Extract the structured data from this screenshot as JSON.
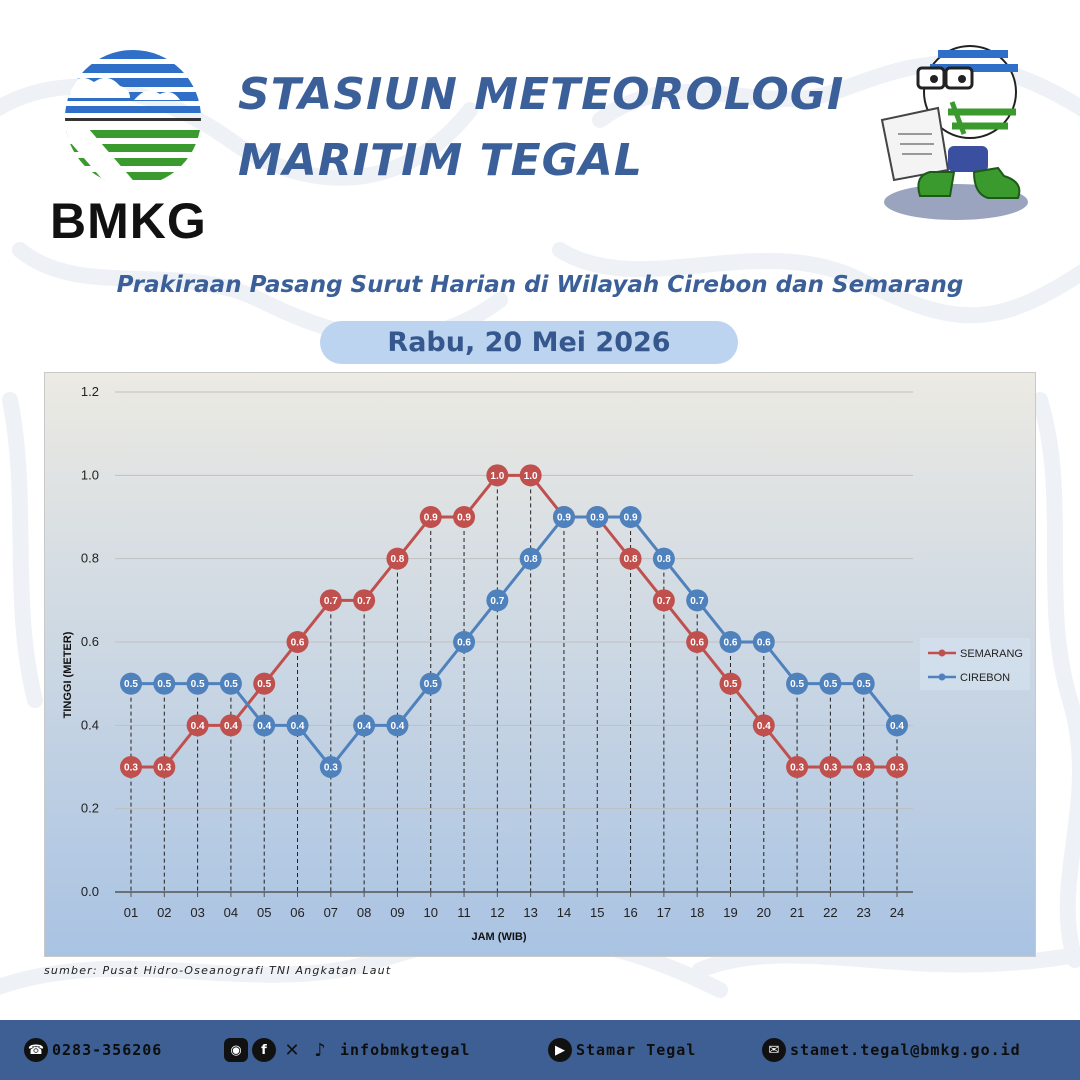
{
  "header": {
    "logo_text": "BMKG",
    "title_line1": "STASIUN METEOROLOGI",
    "title_line2": "MARITIM TEGAL",
    "subtitle": "Prakiraan Pasang Surut Harian di Wilayah Cirebon dan Semarang",
    "date": "Rabu, 20 Mei 2026"
  },
  "chart_data": {
    "type": "line",
    "x": [
      "01",
      "02",
      "03",
      "04",
      "05",
      "06",
      "07",
      "08",
      "09",
      "10",
      "11",
      "12",
      "13",
      "14",
      "15",
      "16",
      "17",
      "18",
      "19",
      "20",
      "21",
      "22",
      "23",
      "24"
    ],
    "series": [
      {
        "name": "SEMARANG",
        "color": "#c0504d",
        "values": [
          0.3,
          0.3,
          0.4,
          0.4,
          0.5,
          0.6,
          0.7,
          0.7,
          0.8,
          0.9,
          0.9,
          1.0,
          1.0,
          0.9,
          0.9,
          0.8,
          0.7,
          0.6,
          0.5,
          0.4,
          0.3,
          0.3,
          0.3,
          0.3
        ]
      },
      {
        "name": "CIREBON",
        "color": "#4f81bd",
        "values": [
          0.5,
          0.5,
          0.5,
          0.5,
          0.4,
          0.4,
          0.3,
          0.4,
          0.4,
          0.5,
          0.6,
          0.7,
          0.8,
          0.9,
          0.9,
          0.9,
          0.8,
          0.7,
          0.6,
          0.6,
          0.5,
          0.5,
          0.5,
          0.4
        ]
      }
    ],
    "xlabel": "JAM (WIB)",
    "ylabel": "TINGGI (METER)",
    "ylim": [
      0,
      1.2
    ],
    "yticks": [
      "0.0",
      "0.2",
      "0.4",
      "0.6",
      "0.8",
      "1.0",
      "1.2"
    ],
    "grid": "horizontal",
    "legend": "right"
  },
  "source": "sumber: Pusat Hidro-Oseanografi TNI Angkatan Laut",
  "footer": {
    "phone": "0283-356206",
    "social": "infobmkgtegal",
    "youtube": "Stamar Tegal",
    "email": "stamet.tegal@bmkg.go.id",
    "phone_icon": "phone-icon",
    "social_icons": [
      "instagram-icon",
      "facebook-icon",
      "x-icon",
      "tiktok-icon"
    ],
    "youtube_icon": "youtube-icon",
    "email_icon": "mail-icon"
  }
}
